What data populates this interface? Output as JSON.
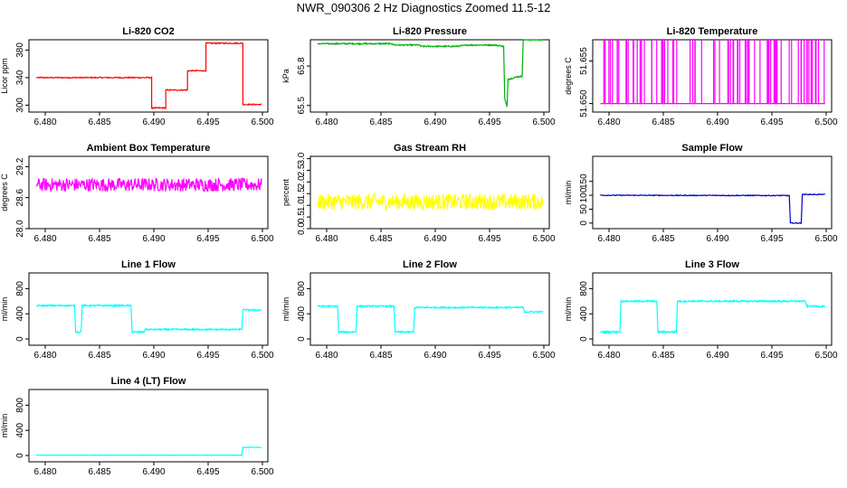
{
  "page_title": "NWR_090306  2 Hz Diagnostics Zoomed 11.5-12",
  "chart_data": [
    {
      "type": "line",
      "title": "Li-820 CO2",
      "ylabel": "Licor ppm",
      "color": "#ff0000",
      "xlim": [
        6.4785,
        6.5005
      ],
      "ylim": [
        290,
        395
      ],
      "xticks": [
        "6.480",
        "6.485",
        "6.490",
        "6.495",
        "6.500"
      ],
      "yticks": [
        "300",
        "340",
        "380"
      ],
      "series": [
        {
          "x": [
            6.4792,
            6.4898,
            6.4898,
            6.4911,
            6.4911,
            6.4931,
            6.4931,
            6.4948,
            6.4948,
            6.4982,
            6.4982,
            6.4999
          ],
          "y": [
            340,
            340,
            296,
            296,
            322,
            322,
            350,
            350,
            390,
            390,
            301,
            301
          ]
        }
      ],
      "noise": 0.8
    },
    {
      "type": "line",
      "title": "Li-820 Pressure",
      "ylabel": "kPa",
      "color": "#00b000",
      "xlim": [
        6.4785,
        6.5005
      ],
      "ylim": [
        65.45,
        66.0
      ],
      "xticks": [
        "6.480",
        "6.485",
        "6.490",
        "6.495",
        "6.500"
      ],
      "yticks": [
        "65.5",
        "65.8"
      ],
      "series": [
        {
          "x": [
            6.4792,
            6.481,
            6.486,
            6.4862,
            6.4885,
            6.4887,
            6.492,
            6.493,
            6.4955,
            6.4963,
            6.4964,
            6.4966,
            6.4967,
            6.4968,
            6.4976,
            6.498,
            6.4981,
            6.4983,
            6.4999
          ],
          "y": [
            65.97,
            65.97,
            65.97,
            65.96,
            65.96,
            65.95,
            65.95,
            65.96,
            65.96,
            65.95,
            65.55,
            65.49,
            65.7,
            65.7,
            65.72,
            65.72,
            66.0,
            66.0,
            66.0
          ]
        }
      ],
      "noise": 0.005
    },
    {
      "type": "line",
      "title": "Li-820 Temperature",
      "ylabel": "degrees C",
      "color": "#ff00ff",
      "xlim": [
        6.4785,
        6.5005
      ],
      "ylim": [
        51.649,
        51.6575
      ],
      "xticks": [
        "6.480",
        "6.485",
        "6.490",
        "6.495",
        "6.500"
      ],
      "yticks": [
        "51.650",
        "51.655"
      ],
      "series": [
        {
          "x": [
            6.4792,
            6.4999
          ],
          "y": [
            51.65,
            51.65
          ]
        }
      ],
      "spikes": {
        "low": 51.65,
        "high": 51.6575,
        "count": 80
      }
    },
    {
      "type": "line",
      "title": "Ambient Box Temperature",
      "ylabel": "degrees C",
      "color": "#ff00ff",
      "xlim": [
        6.4785,
        6.5005
      ],
      "ylim": [
        28.0,
        29.4
      ],
      "xticks": [
        "6.480",
        "6.485",
        "6.490",
        "6.495",
        "6.500"
      ],
      "yticks": [
        "28.0",
        "28.6",
        "29.2"
      ],
      "series": [
        {
          "x": [
            6.4792,
            6.4999
          ],
          "y": [
            28.85,
            28.85
          ]
        }
      ],
      "noise": 0.13
    },
    {
      "type": "line",
      "title": "Gas Stream RH",
      "ylabel": "percent",
      "color": "#ffff00",
      "xlim": [
        6.4785,
        6.5005
      ],
      "ylim": [
        0.0,
        3.1
      ],
      "xticks": [
        "6.480",
        "6.485",
        "6.490",
        "6.495",
        "6.500"
      ],
      "yticks": [
        "0.0",
        "0.5",
        "1.0",
        "1.5",
        "2.0",
        "2.5",
        "3.0"
      ],
      "series": [
        {
          "x": [
            6.4792,
            6.4999
          ],
          "y": [
            1.15,
            1.15
          ]
        }
      ],
      "noise": 0.35
    },
    {
      "type": "line",
      "title": "Sample Flow",
      "ylabel": "ml/min",
      "color": "#0000cc",
      "xlim": [
        6.4785,
        6.5005
      ],
      "ylim": [
        -20,
        240
      ],
      "xticks": [
        "6.480",
        "6.485",
        "6.490",
        "6.495",
        "6.500"
      ],
      "yticks": [
        "0",
        "50",
        "100",
        "150"
      ],
      "series": [
        {
          "x": [
            6.4792,
            6.4966,
            6.4967,
            6.4977,
            6.4978,
            6.4999
          ],
          "y": [
            100,
            99,
            0,
            0,
            103,
            103
          ]
        }
      ],
      "noise": 1.5
    },
    {
      "type": "line",
      "title": "Line 1 Flow",
      "ylabel": "ml/min",
      "color": "#00ffff",
      "xlim": [
        6.4785,
        6.5005
      ],
      "ylim": [
        -100,
        1050
      ],
      "xticks": [
        "6.480",
        "6.485",
        "6.490",
        "6.495",
        "6.500"
      ],
      "yticks": [
        "0",
        "400",
        "800"
      ],
      "series": [
        {
          "x": [
            6.4792,
            6.4827,
            6.4828,
            6.4833,
            6.4834,
            6.4879,
            6.488,
            6.4891,
            6.4892,
            6.4981,
            6.4982,
            6.4999
          ],
          "y": [
            530,
            530,
            110,
            110,
            530,
            530,
            110,
            110,
            150,
            150,
            460,
            460
          ]
        }
      ],
      "noise": 12
    },
    {
      "type": "line",
      "title": "Line 2 Flow",
      "ylabel": "ml/min",
      "color": "#00ffff",
      "xlim": [
        6.4785,
        6.5005
      ],
      "ylim": [
        -100,
        1050
      ],
      "xticks": [
        "6.480",
        "6.485",
        "6.490",
        "6.495",
        "6.500"
      ],
      "yticks": [
        "0",
        "400",
        "800"
      ],
      "series": [
        {
          "x": [
            6.4792,
            6.481,
            6.4811,
            6.4827,
            6.4828,
            6.4862,
            6.4863,
            6.488,
            6.4881,
            6.4981,
            6.4982,
            6.4999
          ],
          "y": [
            520,
            520,
            110,
            110,
            520,
            520,
            110,
            110,
            500,
            500,
            430,
            430
          ]
        }
      ],
      "noise": 12
    },
    {
      "type": "line",
      "title": "Line 3 Flow",
      "ylabel": "ml/min",
      "color": "#00ffff",
      "xlim": [
        6.4785,
        6.5005
      ],
      "ylim": [
        -100,
        1050
      ],
      "xticks": [
        "6.480",
        "6.485",
        "6.490",
        "6.495",
        "6.500"
      ],
      "yticks": [
        "0",
        "400",
        "800"
      ],
      "series": [
        {
          "x": [
            6.4792,
            6.481,
            6.4811,
            6.4844,
            6.4845,
            6.4862,
            6.4863,
            6.4981,
            6.4982,
            6.4999
          ],
          "y": [
            110,
            110,
            600,
            600,
            110,
            110,
            600,
            600,
            520,
            520
          ]
        }
      ],
      "noise": 14
    },
    {
      "type": "line",
      "title": "Line 4 (LT) Flow",
      "ylabel": "ml/min",
      "color": "#00ffff",
      "xlim": [
        6.4785,
        6.5005
      ],
      "ylim": [
        -100,
        1050
      ],
      "xticks": [
        "6.480",
        "6.485",
        "6.490",
        "6.495",
        "6.500"
      ],
      "yticks": [
        "0",
        "400",
        "800"
      ],
      "series": [
        {
          "x": [
            6.4792,
            6.4981,
            6.4982,
            6.4999
          ],
          "y": [
            5,
            5,
            130,
            130
          ]
        }
      ],
      "noise": 4
    }
  ]
}
